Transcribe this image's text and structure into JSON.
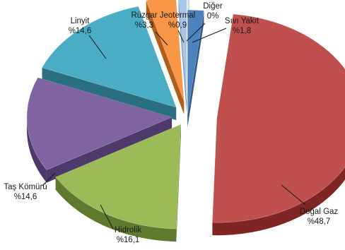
{
  "chart_data": {
    "type": "pie",
    "style": "3d-exploded",
    "title": "",
    "slices": [
      {
        "name": "Sıvı Yakıt",
        "value": 1.8,
        "label_name": "Sıvı Yakıt",
        "label_value": "%1,8",
        "color": "#4f81bd",
        "side": "#2f5a8d"
      },
      {
        "name": "Doğal Gaz",
        "value": 48.7,
        "label_name": "Doğal Gaz",
        "label_value": "%48,7",
        "color": "#c0504d",
        "side": "#7f2624"
      },
      {
        "name": "Hidrolik",
        "value": 16.1,
        "label_name": "Hidrolik",
        "label_value": "%16,1",
        "color": "#9bbb59",
        "side": "#5f7a2e"
      },
      {
        "name": "Taş Kömürü",
        "value": 14.6,
        "label_name": "Taş Kömürü",
        "label_value": "%14,6",
        "color": "#8064a2",
        "side": "#4e3a6a"
      },
      {
        "name": "Linyit",
        "value": 14.6,
        "label_name": "Linyit",
        "label_value": "%14,6",
        "color": "#4bacc6",
        "side": "#2a6f80"
      },
      {
        "name": "Rüzgar",
        "value": 3.3,
        "label_name": "Rüzgar",
        "label_value": "%3,3",
        "color": "#f79646",
        "side": "#b35e18"
      },
      {
        "name": "Jeotermal",
        "value": 0.9,
        "label_name": "Jeotermal",
        "label_value": "%0,9",
        "color": "#a9c4e6",
        "side": "#6f8fb8"
      },
      {
        "name": "Diğer",
        "value": 0,
        "label_name": "Diğer",
        "label_value": "0%",
        "color": "#c6d9f1",
        "side": "#8aa3c4"
      }
    ]
  }
}
